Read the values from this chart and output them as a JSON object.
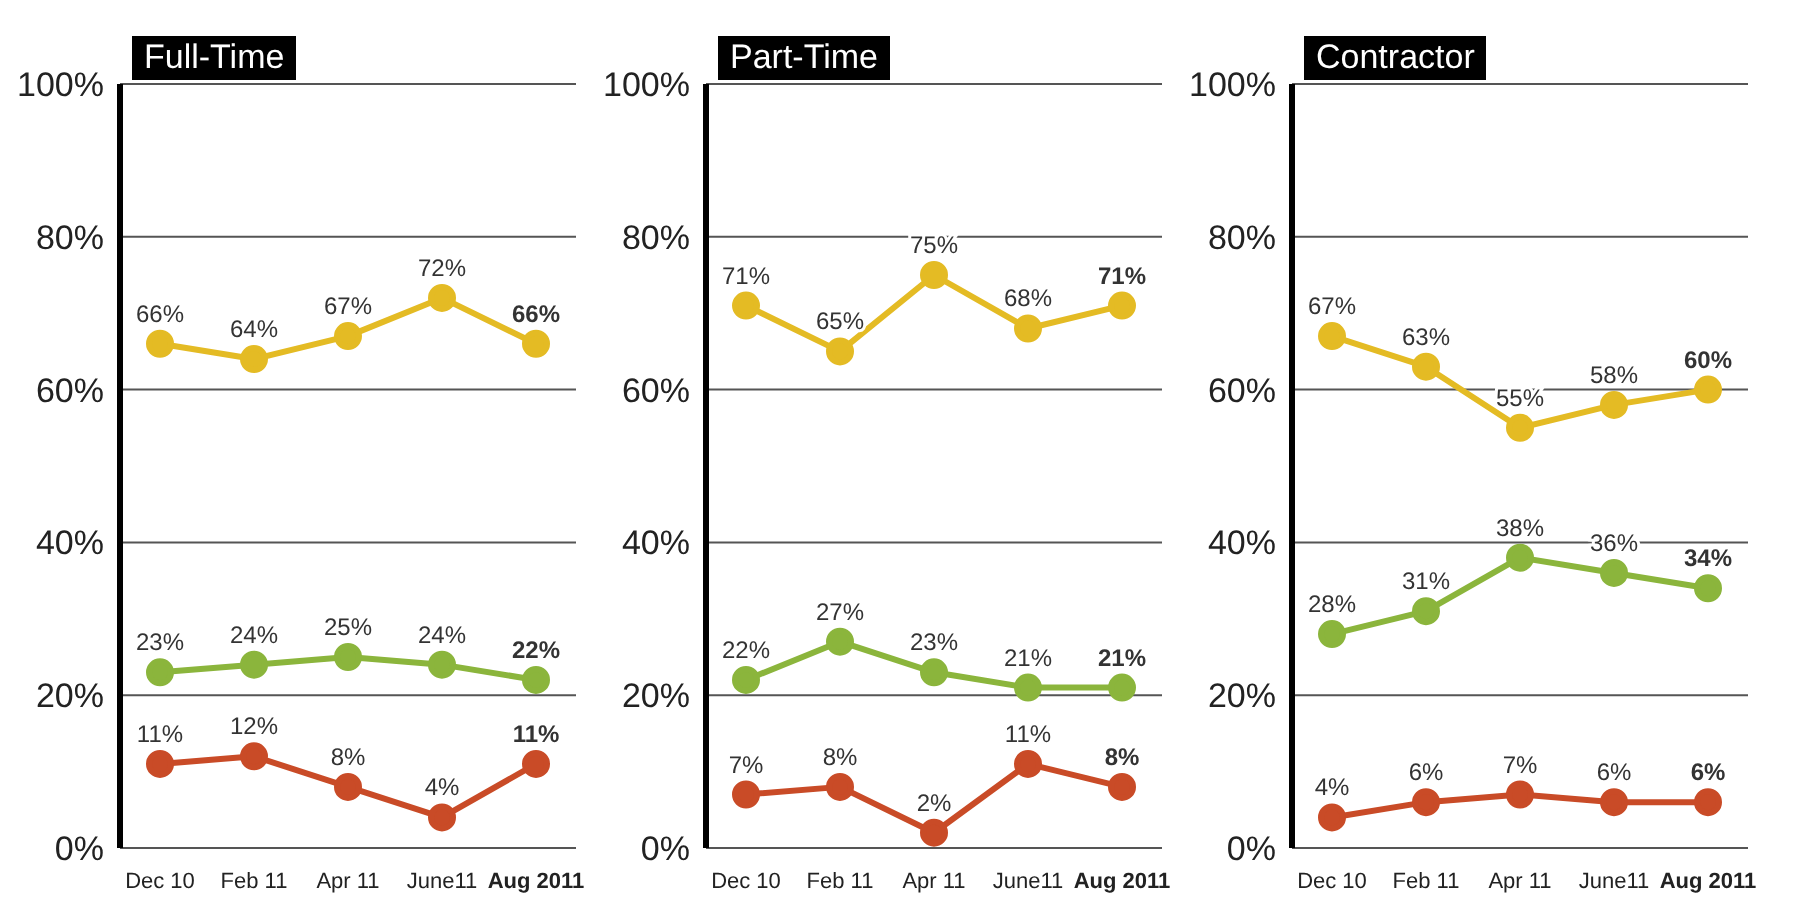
{
  "chart_data": [
    {
      "type": "line",
      "title": "Full-Time",
      "categories": [
        "Dec 10",
        "Feb 11",
        "Apr 11",
        "June11",
        "Aug 2011"
      ],
      "ylim": [
        0,
        100
      ],
      "yticks": [
        {
          "value": 0,
          "label": "0%"
        },
        {
          "value": 20,
          "label": "20%"
        },
        {
          "value": 40,
          "label": "40%"
        },
        {
          "value": 60,
          "label": "60%"
        },
        {
          "value": 80,
          "label": "80%"
        },
        {
          "value": 100,
          "label": "100%"
        }
      ],
      "grid": "y",
      "marker": "circle",
      "series": [
        {
          "color": "#e4bb24",
          "values": [
            66,
            64,
            67,
            72,
            66
          ],
          "value_labels": [
            "66%",
            "64%",
            "67%",
            "72%",
            "66%"
          ]
        },
        {
          "color": "#8bb53c",
          "values": [
            23,
            24,
            25,
            24,
            22
          ],
          "value_labels": [
            "23%",
            "24%",
            "25%",
            "24%",
            "22%"
          ]
        },
        {
          "color": "#c94b27",
          "values": [
            11,
            12,
            8,
            4,
            11
          ],
          "value_labels": [
            "11%",
            "12%",
            "8%",
            "4%",
            "11%"
          ]
        }
      ]
    },
    {
      "type": "line",
      "title": "Part-Time",
      "categories": [
        "Dec 10",
        "Feb 11",
        "Apr 11",
        "June11",
        "Aug 2011"
      ],
      "ylim": [
        0,
        100
      ],
      "yticks": [
        {
          "value": 0,
          "label": "0%"
        },
        {
          "value": 20,
          "label": "20%"
        },
        {
          "value": 40,
          "label": "40%"
        },
        {
          "value": 60,
          "label": "60%"
        },
        {
          "value": 80,
          "label": "80%"
        },
        {
          "value": 100,
          "label": "100%"
        }
      ],
      "grid": "y",
      "marker": "circle",
      "series": [
        {
          "color": "#e4bb24",
          "values": [
            71,
            65,
            75,
            68,
            71
          ],
          "value_labels": [
            "71%",
            "65%",
            "75%",
            "68%",
            "71%"
          ]
        },
        {
          "color": "#8bb53c",
          "values": [
            22,
            27,
            23,
            21,
            21
          ],
          "value_labels": [
            "22%",
            "27%",
            "23%",
            "21%",
            "21%"
          ]
        },
        {
          "color": "#c94b27",
          "values": [
            7,
            8,
            2,
            11,
            8
          ],
          "value_labels": [
            "7%",
            "8%",
            "2%",
            "11%",
            "8%"
          ]
        }
      ]
    },
    {
      "type": "line",
      "title": "Contractor",
      "categories": [
        "Dec 10",
        "Feb 11",
        "Apr 11",
        "June11",
        "Aug 2011"
      ],
      "ylim": [
        0,
        100
      ],
      "yticks": [
        {
          "value": 0,
          "label": "0%"
        },
        {
          "value": 20,
          "label": "20%"
        },
        {
          "value": 40,
          "label": "40%"
        },
        {
          "value": 60,
          "label": "60%"
        },
        {
          "value": 80,
          "label": "80%"
        },
        {
          "value": 100,
          "label": "100%"
        }
      ],
      "grid": "y",
      "marker": "circle",
      "series": [
        {
          "color": "#e4bb24",
          "values": [
            67,
            63,
            55,
            58,
            60
          ],
          "value_labels": [
            "67%",
            "63%",
            "55%",
            "58%",
            "60%"
          ]
        },
        {
          "color": "#8bb53c",
          "values": [
            28,
            31,
            38,
            36,
            34
          ],
          "value_labels": [
            "28%",
            "31%",
            "38%",
            "36%",
            "34%"
          ]
        },
        {
          "color": "#c94b27",
          "values": [
            4,
            6,
            7,
            6,
            6
          ],
          "value_labels": [
            "4%",
            "6%",
            "7%",
            "6%",
            "6%"
          ]
        }
      ]
    }
  ]
}
